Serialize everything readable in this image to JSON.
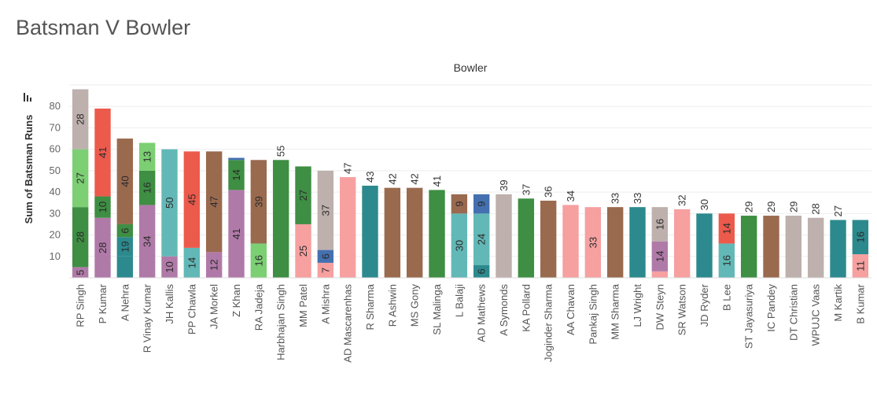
{
  "page_title": "Batsman V Bowler",
  "chart_data": {
    "type": "bar",
    "stacked": true,
    "column_header": "Bowler",
    "ylabel": "Sum of Batsman Runs",
    "ylim": [
      0,
      90
    ],
    "yticks": [
      10,
      20,
      30,
      40,
      50,
      60,
      70,
      80
    ],
    "grid": true,
    "categories": [
      {
        "name": "RP Singh",
        "segments": [
          {
            "value": 5,
            "label": "5",
            "color": "#b07aa8"
          },
          {
            "value": 28,
            "label": "28",
            "color": "#3e8e43"
          },
          {
            "value": 27,
            "label": "27",
            "color": "#7ccf73"
          },
          {
            "value": 28,
            "label": "28",
            "color": "#bdb0ad"
          }
        ]
      },
      {
        "name": "P Kumar",
        "segments": [
          {
            "value": 28,
            "label": "28",
            "color": "#b07aa8"
          },
          {
            "value": 10,
            "label": "10",
            "color": "#3e8e43"
          },
          {
            "value": 41,
            "label": "41",
            "color": "#ec5a4c"
          }
        ]
      },
      {
        "name": "A Nehra",
        "segments": [
          {
            "value": 10,
            "label": "",
            "color": "#2c8a8e"
          },
          {
            "value": 9,
            "label": "19",
            "color": "#2c8a8e"
          },
          {
            "value": 6,
            "label": "6",
            "color": "#3e8e43"
          },
          {
            "value": 40,
            "label": "40",
            "color": "#9a6a4f"
          }
        ]
      },
      {
        "name": "R Vinay Kumar",
        "segments": [
          {
            "value": 34,
            "label": "34",
            "color": "#b07aa8"
          },
          {
            "value": 16,
            "label": "16",
            "color": "#3e8e43"
          },
          {
            "value": 13,
            "label": "13",
            "color": "#7ccf73"
          }
        ]
      },
      {
        "name": "JH Kallis",
        "segments": [
          {
            "value": 10,
            "label": "10",
            "color": "#b07aa8"
          },
          {
            "value": 50,
            "label": "50",
            "color": "#62b8b6"
          }
        ]
      },
      {
        "name": "PP Chawla",
        "segments": [
          {
            "value": 14,
            "label": "14",
            "color": "#62b8b6"
          },
          {
            "value": 45,
            "label": "45",
            "color": "#ec5a4c"
          }
        ]
      },
      {
        "name": "JA Morkel",
        "segments": [
          {
            "value": 12,
            "label": "12",
            "color": "#b07aa8"
          },
          {
            "value": 47,
            "label": "47",
            "color": "#9a6a4f"
          }
        ]
      },
      {
        "name": "Z Khan",
        "segments": [
          {
            "value": 41,
            "label": "41",
            "color": "#b07aa8"
          },
          {
            "value": 14,
            "label": "14",
            "color": "#3e8e43"
          },
          {
            "value": 1,
            "label": "",
            "color": "#4470b0"
          }
        ]
      },
      {
        "name": "RA Jadeja",
        "segments": [
          {
            "value": 16,
            "label": "16",
            "color": "#7ccf73"
          },
          {
            "value": 39,
            "label": "39",
            "color": "#9a6a4f"
          }
        ]
      },
      {
        "name": "Harbhajan Singh",
        "total": "55",
        "segments": [
          {
            "value": 55,
            "label": "",
            "color": "#3e8e43"
          }
        ]
      },
      {
        "name": "MM Patel",
        "segments": [
          {
            "value": 25,
            "label": "25",
            "color": "#f6a0a0"
          },
          {
            "value": 27,
            "label": "27",
            "color": "#3e8e43"
          }
        ]
      },
      {
        "name": "A Mishra",
        "segments": [
          {
            "value": 7,
            "label": "7",
            "color": "#f6a0a0"
          },
          {
            "value": 6,
            "label": "6",
            "color": "#4470b0"
          },
          {
            "value": 37,
            "label": "37",
            "color": "#bdb0ad"
          }
        ]
      },
      {
        "name": "AD Mascarenhas",
        "total": "47",
        "segments": [
          {
            "value": 47,
            "label": "",
            "color": "#f6a0a0"
          }
        ]
      },
      {
        "name": "R Sharma",
        "total": "43",
        "segments": [
          {
            "value": 43,
            "label": "",
            "color": "#2c8a8e"
          }
        ]
      },
      {
        "name": "R Ashwin",
        "total": "42",
        "segments": [
          {
            "value": 42,
            "label": "",
            "color": "#9a6a4f"
          }
        ]
      },
      {
        "name": "MS Gony",
        "total": "42",
        "segments": [
          {
            "value": 42,
            "label": "",
            "color": "#9a6a4f"
          }
        ]
      },
      {
        "name": "SL Malinga",
        "total": "41",
        "segments": [
          {
            "value": 41,
            "label": "",
            "color": "#3e8e43"
          }
        ]
      },
      {
        "name": "L Balaji",
        "segments": [
          {
            "value": 30,
            "label": "30",
            "color": "#62b8b6"
          },
          {
            "value": 9,
            "label": "9",
            "color": "#9a6a4f"
          }
        ]
      },
      {
        "name": "AD Mathews",
        "segments": [
          {
            "value": 6,
            "label": "6",
            "color": "#2c8a8e"
          },
          {
            "value": 24,
            "label": "24",
            "color": "#62b8b6"
          },
          {
            "value": 9,
            "label": "9",
            "color": "#4470b0"
          }
        ]
      },
      {
        "name": "A Symonds",
        "total": "39",
        "segments": [
          {
            "value": 39,
            "label": "",
            "color": "#bdb0ad"
          }
        ]
      },
      {
        "name": "KA Pollard",
        "total": "37",
        "segments": [
          {
            "value": 37,
            "label": "",
            "color": "#3e8e43"
          }
        ]
      },
      {
        "name": "Joginder Sharma",
        "total": "36",
        "segments": [
          {
            "value": 36,
            "label": "",
            "color": "#9a6a4f"
          }
        ]
      },
      {
        "name": "AA Chavan",
        "total": "34",
        "segments": [
          {
            "value": 34,
            "label": "",
            "color": "#f6a0a0"
          }
        ]
      },
      {
        "name": "Pankaj Singh",
        "segments": [
          {
            "value": 33,
            "label": "33",
            "color": "#f6a0a0"
          }
        ]
      },
      {
        "name": "MM Sharma",
        "total": "33",
        "segments": [
          {
            "value": 33,
            "label": "",
            "color": "#9a6a4f"
          }
        ]
      },
      {
        "name": "LJ Wright",
        "total": "33",
        "segments": [
          {
            "value": 33,
            "label": "",
            "color": "#2c8a8e"
          }
        ]
      },
      {
        "name": "DW Steyn",
        "segments": [
          {
            "value": 3,
            "label": "",
            "color": "#f6a0a0"
          },
          {
            "value": 14,
            "label": "14",
            "color": "#b07aa8"
          },
          {
            "value": 16,
            "label": "16",
            "color": "#bdb0ad"
          }
        ]
      },
      {
        "name": "SR Watson",
        "total": "32",
        "segments": [
          {
            "value": 32,
            "label": "",
            "color": "#f6a0a0"
          }
        ]
      },
      {
        "name": "JD Ryder",
        "total": "30",
        "segments": [
          {
            "value": 30,
            "label": "",
            "color": "#2c8a8e"
          }
        ]
      },
      {
        "name": "B Lee",
        "segments": [
          {
            "value": 16,
            "label": "16",
            "color": "#62b8b6"
          },
          {
            "value": 14,
            "label": "14",
            "color": "#ec5a4c"
          }
        ]
      },
      {
        "name": "ST Jayasuriya",
        "total": "29",
        "segments": [
          {
            "value": 29,
            "label": "",
            "color": "#3e8e43"
          }
        ]
      },
      {
        "name": "IC Pandey",
        "total": "29",
        "segments": [
          {
            "value": 29,
            "label": "",
            "color": "#9a6a4f"
          }
        ]
      },
      {
        "name": "DT Christian",
        "total": "29",
        "segments": [
          {
            "value": 29,
            "label": "",
            "color": "#bdb0ad"
          }
        ]
      },
      {
        "name": "WPUJC Vaas",
        "total": "28",
        "segments": [
          {
            "value": 28,
            "label": "",
            "color": "#bdb0ad"
          }
        ]
      },
      {
        "name": "M Kartik",
        "total": "27",
        "segments": [
          {
            "value": 27,
            "label": "",
            "color": "#2c8a8e"
          }
        ]
      },
      {
        "name": "B Kumar",
        "segments": [
          {
            "value": 11,
            "label": "11",
            "color": "#f6a0a0"
          },
          {
            "value": 16,
            "label": "16",
            "color": "#2c8a8e"
          }
        ]
      }
    ]
  }
}
